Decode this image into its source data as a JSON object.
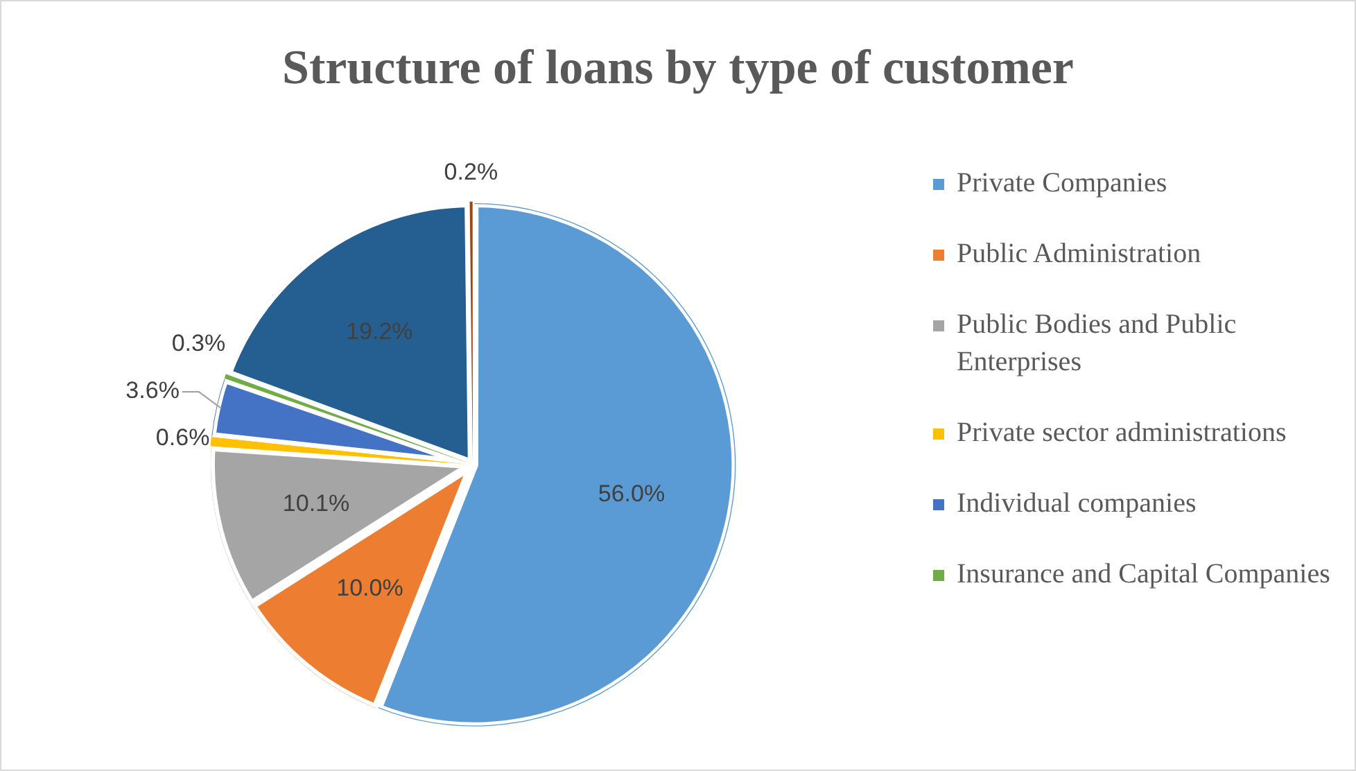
{
  "chart_data": {
    "type": "pie",
    "title": "Structure of loans by type of customer",
    "categories": [
      "Private Companies",
      "Public Administration",
      "Public Bodies and Public Enterprises",
      "Private sector administrations",
      "Individual companies",
      "Insurance and Capital Companies",
      null,
      null
    ],
    "values": [
      56.0,
      10.0,
      10.1,
      0.6,
      3.6,
      0.3,
      19.2,
      0.2
    ],
    "colors": [
      "#5b9bd5",
      "#ed7d31",
      "#a5a5a5",
      "#ffc000",
      "#4472c4",
      "#70ad47",
      "#255e91",
      "#9e480e"
    ],
    "value_labels": [
      "56.0%",
      "10.0%",
      "10.1%",
      "0.6%",
      "3.6%",
      "0.3%",
      "19.2%",
      "0.2%"
    ],
    "legend": "right"
  }
}
